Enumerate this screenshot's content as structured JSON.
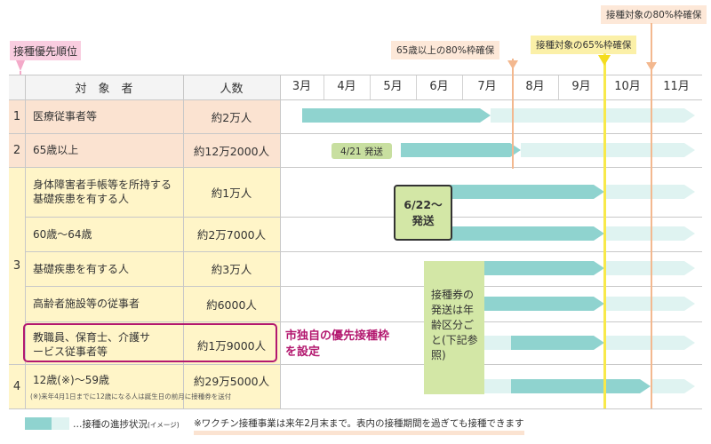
{
  "priority_label": "接種優先順位",
  "columns": {
    "target": "対　象　者",
    "people": "人数"
  },
  "months": [
    "3月",
    "4月",
    "5月",
    "6月",
    "7月",
    "8月",
    "9月",
    "10月",
    "11月"
  ],
  "callouts": {
    "age65": "65歳以上の80%枠確保",
    "target65": "接種対象の65%枠確保",
    "target80": "接種対象の80%枠確保"
  },
  "rows": [
    {
      "group": "1",
      "target": "医療従事者等",
      "people": "約2万人"
    },
    {
      "group": "2",
      "target": "65歳以上",
      "people": "約12万2000人"
    },
    {
      "group": "",
      "target": "身体障害者手帳等を所持する基礎疾患を有する人",
      "people": "約1万人"
    },
    {
      "group": "",
      "target": "60歳～64歳",
      "people": "約2万7000人"
    },
    {
      "group": "3",
      "target": "基礎疾患を有する人",
      "people": "約3万人"
    },
    {
      "group": "",
      "target": "高齢者施設等の従事者",
      "people": "約6000人"
    },
    {
      "group": "",
      "target": "教職員、保育士、介護サービス従事者等",
      "people": "約1万9000人"
    },
    {
      "group": "4",
      "target": "12歳(※)～59歳",
      "people": "約29万5000人"
    }
  ],
  "row8_note": "(※)来年4月1日までに12歳になる人は誕生日の前月に接種券を送付",
  "annotations": {
    "date_421": "4/21 発送",
    "date_622": "6/22～ 発送",
    "ticket_note": "接種券の発送は年齢区分ごと(下記参照)",
    "city_priority": "市独自の優先接種枠を設定"
  },
  "footer": {
    "legend_text": "…接種の進捗状況",
    "legend_small": "(イメージ)",
    "note": "※ワクチン接種事業は来年2月末まで。表内の接種期間を過ぎても接種できます"
  },
  "colors": {
    "orange_bg": "#fbe3d1",
    "yellow_bg": "#fff5c8",
    "green_box": "#d3e7a6",
    "teal_dark": "#8fd3cf",
    "teal_light": "#dff3f1",
    "pink_label": "#f9cde0",
    "magenta": "#b3186f",
    "orange_line": "#f3b88f",
    "yellow_line": "#f8e94a"
  }
}
